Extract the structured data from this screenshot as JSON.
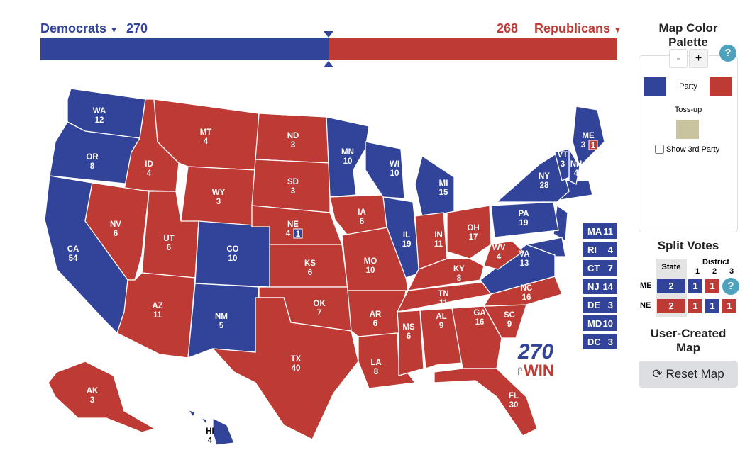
{
  "header": {
    "dem_label": "Democrats",
    "dem_ev": "270",
    "rep_label": "Republicans",
    "rep_ev": "268",
    "dem_fraction": 0.5,
    "colors": {
      "dem": "#31449a",
      "rep": "#bd3b34",
      "tossup": "#c9c3a0"
    }
  },
  "states": [
    {
      "abbr": "WA",
      "ev": "12",
      "party": "D"
    },
    {
      "abbr": "OR",
      "ev": "8",
      "party": "D"
    },
    {
      "abbr": "CA",
      "ev": "54",
      "party": "D"
    },
    {
      "abbr": "ID",
      "ev": "4",
      "party": "R"
    },
    {
      "abbr": "NV",
      "ev": "6",
      "party": "R"
    },
    {
      "abbr": "MT",
      "ev": "4",
      "party": "R"
    },
    {
      "abbr": "WY",
      "ev": "3",
      "party": "R"
    },
    {
      "abbr": "UT",
      "ev": "6",
      "party": "R"
    },
    {
      "abbr": "AZ",
      "ev": "11",
      "party": "R"
    },
    {
      "abbr": "CO",
      "ev": "10",
      "party": "D"
    },
    {
      "abbr": "NM",
      "ev": "5",
      "party": "D"
    },
    {
      "abbr": "ND",
      "ev": "3",
      "party": "R"
    },
    {
      "abbr": "SD",
      "ev": "3",
      "party": "R"
    },
    {
      "abbr": "NE",
      "ev": "4",
      "party": "R"
    },
    {
      "abbr": "KS",
      "ev": "6",
      "party": "R"
    },
    {
      "abbr": "OK",
      "ev": "7",
      "party": "R"
    },
    {
      "abbr": "TX",
      "ev": "40",
      "party": "R"
    },
    {
      "abbr": "MN",
      "ev": "10",
      "party": "D"
    },
    {
      "abbr": "IA",
      "ev": "6",
      "party": "R"
    },
    {
      "abbr": "MO",
      "ev": "10",
      "party": "R"
    },
    {
      "abbr": "AR",
      "ev": "6",
      "party": "R"
    },
    {
      "abbr": "LA",
      "ev": "8",
      "party": "R"
    },
    {
      "abbr": "WI",
      "ev": "10",
      "party": "D"
    },
    {
      "abbr": "IL",
      "ev": "19",
      "party": "D"
    },
    {
      "abbr": "MI",
      "ev": "15",
      "party": "D"
    },
    {
      "abbr": "IN",
      "ev": "11",
      "party": "R"
    },
    {
      "abbr": "OH",
      "ev": "17",
      "party": "R"
    },
    {
      "abbr": "KY",
      "ev": "8",
      "party": "R"
    },
    {
      "abbr": "TN",
      "ev": "11",
      "party": "R"
    },
    {
      "abbr": "MS",
      "ev": "6",
      "party": "R"
    },
    {
      "abbr": "AL",
      "ev": "9",
      "party": "R"
    },
    {
      "abbr": "GA",
      "ev": "16",
      "party": "R"
    },
    {
      "abbr": "FL",
      "ev": "30",
      "party": "R"
    },
    {
      "abbr": "SC",
      "ev": "9",
      "party": "R"
    },
    {
      "abbr": "NC",
      "ev": "16",
      "party": "R"
    },
    {
      "abbr": "VA",
      "ev": "13",
      "party": "D"
    },
    {
      "abbr": "WV",
      "ev": "4",
      "party": "R"
    },
    {
      "abbr": "PA",
      "ev": "19",
      "party": "D"
    },
    {
      "abbr": "NY",
      "ev": "28",
      "party": "D"
    },
    {
      "abbr": "ME",
      "ev": "3",
      "party": "D"
    },
    {
      "abbr": "NH",
      "ev": "4",
      "party": "D"
    },
    {
      "abbr": "VT",
      "ev": "3",
      "party": "D"
    },
    {
      "abbr": "AK",
      "ev": "3",
      "party": "R"
    },
    {
      "abbr": "HI",
      "ev": "4",
      "party": "D"
    }
  ],
  "district_badges": {
    "NE": "1",
    "ME": "1"
  },
  "small_states": [
    {
      "abbr": "MA",
      "ev": "11"
    },
    {
      "abbr": "RI",
      "ev": "4"
    },
    {
      "abbr": "CT",
      "ev": "7"
    },
    {
      "abbr": "NJ",
      "ev": "14"
    },
    {
      "abbr": "DE",
      "ev": "3"
    },
    {
      "abbr": "MD",
      "ev": "10"
    },
    {
      "abbr": "DC",
      "ev": "3"
    }
  ],
  "logo": {
    "top": "270",
    "middle": "TO",
    "bottom": "WIN"
  },
  "palette": {
    "title": "Map Color Palette",
    "minus": "-",
    "plus": "+",
    "help": "?",
    "party_label": "Party",
    "tossup_label": "Toss-up",
    "third_party_label": "Show 3rd Party",
    "third_party_checked": false
  },
  "split_votes": {
    "title": "Split Votes",
    "state_header": "State",
    "district_header": "District",
    "district_numbers": [
      "1",
      "2",
      "3"
    ],
    "rows": [
      {
        "state": "ME",
        "values": [
          {
            "v": "2",
            "p": "D"
          },
          {
            "v": "1",
            "p": "D"
          },
          {
            "v": "1",
            "p": "R"
          }
        ],
        "help": "?"
      },
      {
        "state": "NE",
        "values": [
          {
            "v": "2",
            "p": "R"
          },
          {
            "v": "1",
            "p": "R"
          },
          {
            "v": "1",
            "p": "D"
          },
          {
            "v": "1",
            "p": "R"
          }
        ]
      }
    ]
  },
  "user_map": {
    "title": "User-Created Map",
    "reset_label": "Reset Map"
  }
}
